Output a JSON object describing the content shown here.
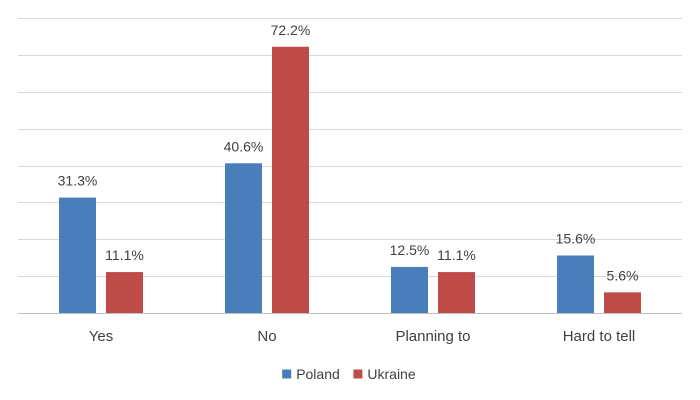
{
  "chart_data": {
    "type": "bar",
    "categories": [
      "Yes",
      "No",
      "Planning to",
      "Hard to tell"
    ],
    "series": [
      {
        "name": "Poland",
        "values": [
          31.3,
          40.6,
          12.5,
          15.6
        ],
        "labels": [
          "31.3%",
          "40.6%",
          "12.5%",
          "15.6%"
        ],
        "color": "#4a7ebb"
      },
      {
        "name": "Ukraine",
        "values": [
          11.1,
          72.2,
          11.1,
          5.6
        ],
        "labels": [
          "11.1%",
          "72.2%",
          "11.1%",
          "5.6%"
        ],
        "color": "#be4b48"
      }
    ],
    "title": "",
    "xlabel": "",
    "ylabel": "",
    "ylim": [
      0,
      80
    ],
    "y_axis_visible": false,
    "grid": true,
    "legend_position": "bottom"
  }
}
